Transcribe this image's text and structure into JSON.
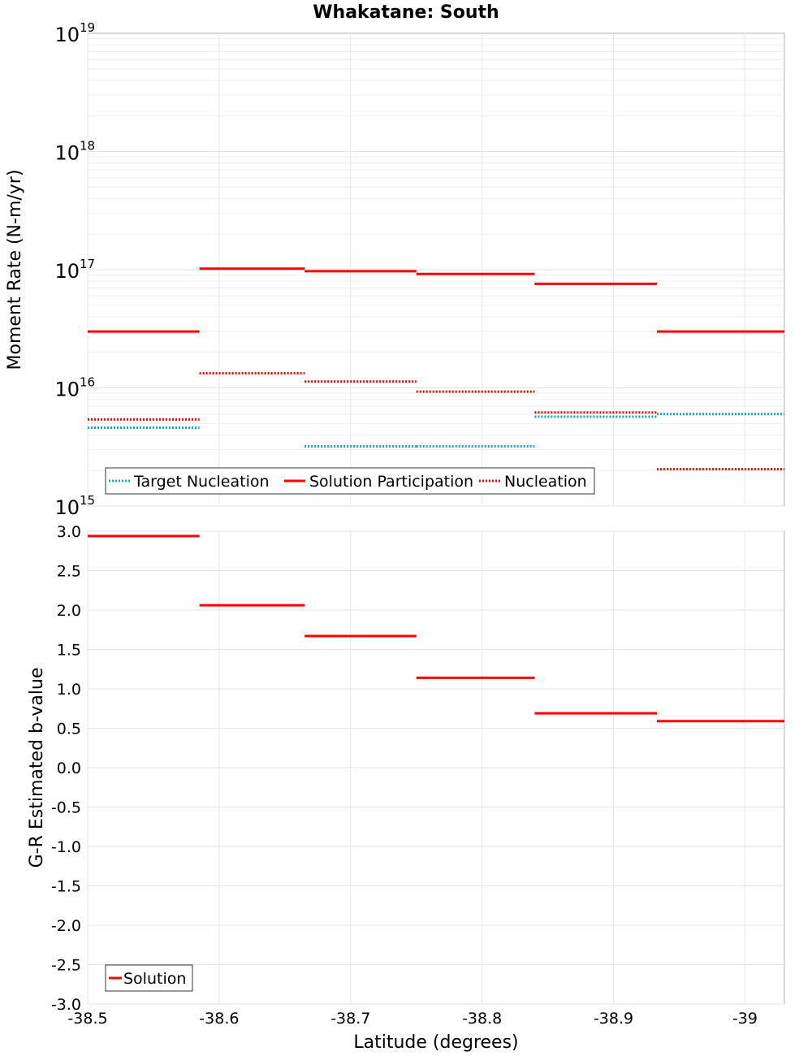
{
  "chart_data": [
    {
      "type": "step",
      "title": "Whakatane: South",
      "ylabel": "Moment Rate (N-m/yr)",
      "yscale": "log",
      "ylim": [
        1000000000000000.0,
        1e+19
      ],
      "xlim": [
        -38.5,
        -39.03
      ],
      "x_reversed": true,
      "grid": true,
      "legend_position": "bottom-left",
      "y_ticks": [
        {
          "value": 1000000000000000.0,
          "base": "10",
          "exp": "15"
        },
        {
          "value": 1e+16,
          "base": "10",
          "exp": "16"
        },
        {
          "value": 1e+17,
          "base": "10",
          "exp": "17"
        },
        {
          "value": 1e+18,
          "base": "10",
          "exp": "18"
        },
        {
          "value": 1e+19,
          "base": "10",
          "exp": "19"
        }
      ],
      "series": [
        {
          "name": "Target Nucleation",
          "color": "#17a9b8",
          "style": "dotted",
          "segments": [
            {
              "x0": -38.5,
              "x1": -38.585,
              "y": 4600000000000000.0
            },
            {
              "x0": -38.665,
              "x1": -38.75,
              "y": 3200000000000000.0
            },
            {
              "x0": -38.75,
              "x1": -38.84,
              "y": 3200000000000000.0
            },
            {
              "x0": -38.84,
              "x1": -38.933,
              "y": 5700000000000000.0
            },
            {
              "x0": -38.933,
              "x1": -39.03,
              "y": 6000000000000000.0
            }
          ]
        },
        {
          "name": "Solution Participation",
          "color": "#ff0000",
          "style": "solid",
          "segments": [
            {
              "x0": -38.5,
              "x1": -38.585,
              "y": 3e+16
            },
            {
              "x0": -38.585,
              "x1": -38.665,
              "y": 1.02e+17
            },
            {
              "x0": -38.665,
              "x1": -38.75,
              "y": 9.7e+16
            },
            {
              "x0": -38.75,
              "x1": -38.84,
              "y": 9.2e+16
            },
            {
              "x0": -38.84,
              "x1": -38.933,
              "y": 7.6e+16
            },
            {
              "x0": -38.933,
              "x1": -39.03,
              "y": 3e+16
            }
          ]
        },
        {
          "name": "Nucleation",
          "color": "#ff0000",
          "style": "dotted",
          "segments": [
            {
              "x0": -38.5,
              "x1": -38.585,
              "y": 5400000000000000.0
            },
            {
              "x0": -38.585,
              "x1": -38.665,
              "y": 1.33e+16
            },
            {
              "x0": -38.665,
              "x1": -38.75,
              "y": 1.13e+16
            },
            {
              "x0": -38.75,
              "x1": -38.84,
              "y": 9300000000000000.0
            },
            {
              "x0": -38.84,
              "x1": -38.933,
              "y": 6200000000000000.0
            },
            {
              "x0": -38.933,
              "x1": -39.03,
              "y": 2050000000000000.0
            }
          ]
        }
      ]
    },
    {
      "type": "step",
      "xlabel": "Latitude (degrees)",
      "ylabel": "G-R Estimated b-value",
      "ylim": [
        -3.0,
        3.0
      ],
      "xlim": [
        -38.5,
        -39.03
      ],
      "x_reversed": true,
      "grid": true,
      "legend_position": "bottom-left",
      "y_ticks": [
        "3.0",
        "2.5",
        "2.0",
        "1.5",
        "1.0",
        "0.5",
        "0.0",
        "-0.5",
        "-1.0",
        "-1.5",
        "-2.0",
        "-2.5",
        "-3.0"
      ],
      "x_ticks": [
        {
          "value": -38.5,
          "label": "-38.5"
        },
        {
          "value": -38.6,
          "label": "-38.6"
        },
        {
          "value": -38.7,
          "label": "-38.7"
        },
        {
          "value": -38.8,
          "label": "-38.8"
        },
        {
          "value": -38.9,
          "label": "-38.9"
        },
        {
          "value": -39.0,
          "label": "-39"
        }
      ],
      "series": [
        {
          "name": "Solution",
          "color": "#ff0000",
          "style": "solid",
          "segments": [
            {
              "x0": -38.5,
              "x1": -38.585,
              "y": 2.94
            },
            {
              "x0": -38.585,
              "x1": -38.665,
              "y": 2.06
            },
            {
              "x0": -38.665,
              "x1": -38.75,
              "y": 1.67
            },
            {
              "x0": -38.75,
              "x1": -38.84,
              "y": 1.14
            },
            {
              "x0": -38.84,
              "x1": -38.933,
              "y": 0.69
            },
            {
              "x0": -38.933,
              "x1": -39.03,
              "y": 0.59
            }
          ]
        }
      ]
    }
  ]
}
